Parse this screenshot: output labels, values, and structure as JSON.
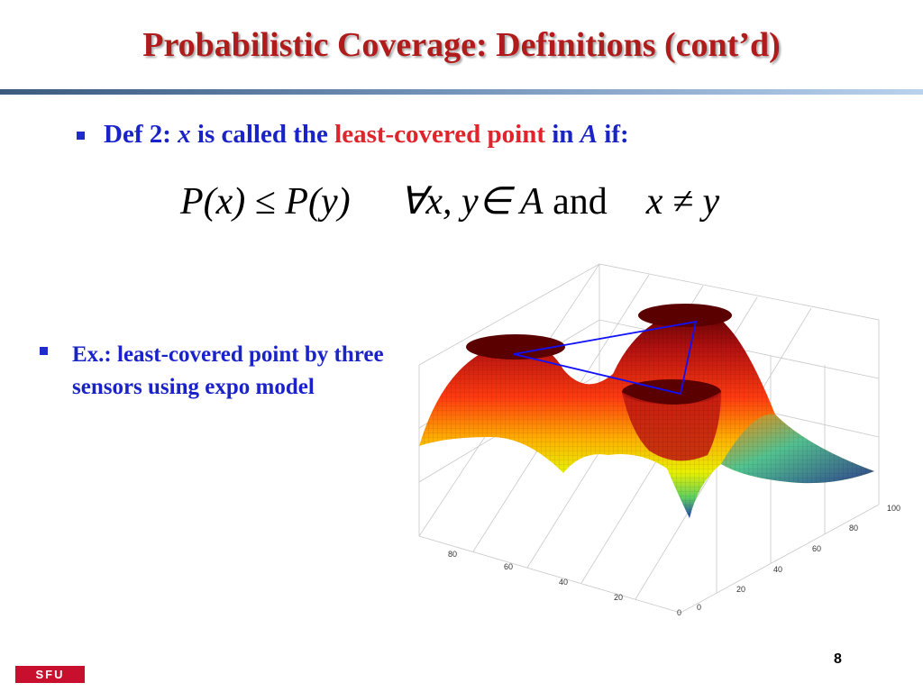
{
  "slide": {
    "title": "Probabilistic Coverage: Definitions (cont’d)",
    "page_number": "8",
    "logo_text": "SFU"
  },
  "definition": {
    "label": "Def 2:",
    "var_x": "x",
    "text_1": "is called the",
    "highlight": "least-covered point",
    "text_2": "in",
    "var_A": "A",
    "text_3": "if:"
  },
  "formula": {
    "lhs": "P(x)",
    "op": "≤",
    "rhs": "P(y)",
    "quantifier": "∀x, y∈ A",
    "conj": "and",
    "cond": "x ≠ y"
  },
  "example": {
    "text": "Ex.: least-covered point by three sensors using expo model"
  },
  "plot": {
    "axis_x_ticks": [
      "0",
      "20",
      "40",
      "60",
      "80"
    ],
    "axis_y_ticks": [
      "0",
      "20",
      "40",
      "60",
      "80",
      "100"
    ],
    "colors": {
      "peak": "#6b0000",
      "high": "#e02010",
      "mid": "#f5d000",
      "low": "#2030a0",
      "triangle": "#1010ff"
    }
  }
}
